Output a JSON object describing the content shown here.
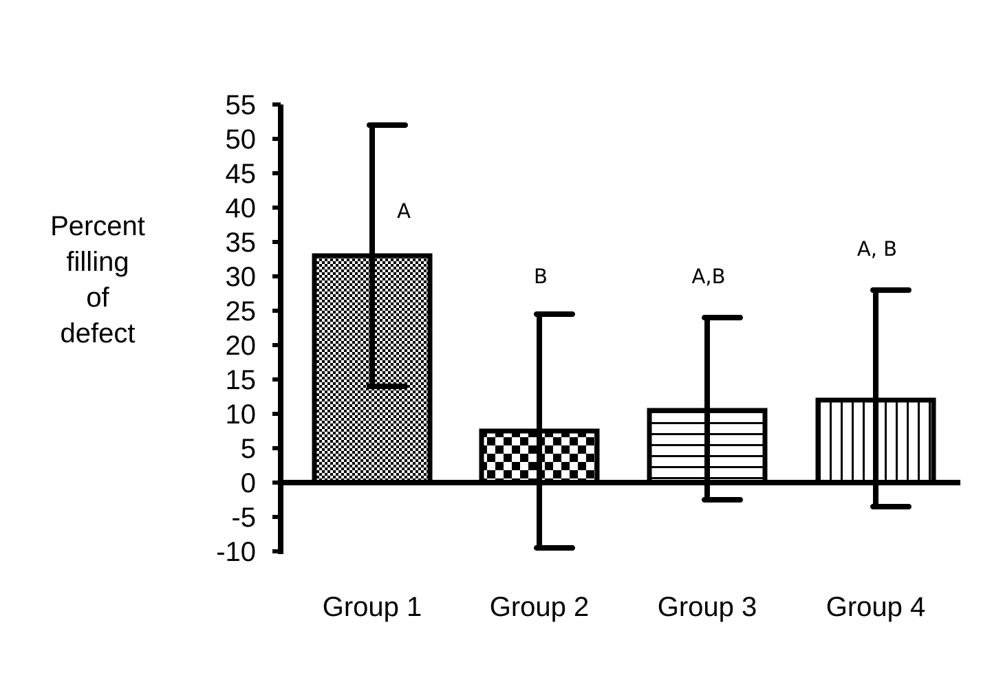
{
  "chart_data": {
    "type": "bar",
    "title": "",
    "xlabel": "",
    "ylabel": [
      "Percent",
      "filling",
      "of",
      "defect"
    ],
    "ylim": [
      -10,
      55
    ],
    "yticks": [
      55,
      50,
      45,
      40,
      35,
      30,
      25,
      20,
      15,
      10,
      5,
      0,
      -5,
      -10
    ],
    "grid": false,
    "legend": "none",
    "categories": [
      "Group 1",
      "Group 2",
      "Group 3",
      "Group 4"
    ],
    "values": [
      33,
      7.5,
      10.5,
      12
    ],
    "error_upper": [
      52,
      24.5,
      24,
      28
    ],
    "error_lower": [
      14,
      -9.5,
      -2.5,
      -3.5
    ],
    "significance_labels": [
      "A",
      "B",
      "A,B",
      "A, B"
    ],
    "significance_y": [
      38.5,
      29,
      29,
      33
    ],
    "patterns": [
      "fine-checker",
      "coarse-checker",
      "horizontal-stripes",
      "vertical-stripes"
    ],
    "colors": {
      "ink": "#000000",
      "background": "#ffffff"
    }
  }
}
